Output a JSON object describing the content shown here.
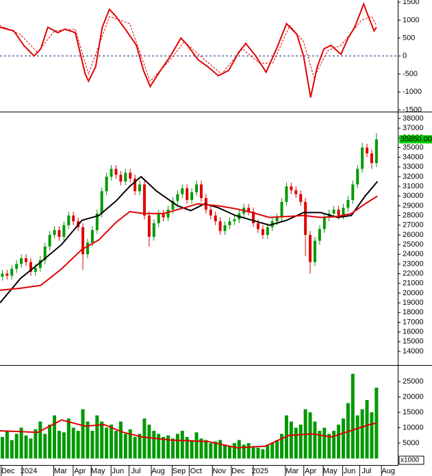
{
  "chart_data": [
    {
      "type": "line",
      "xlim": [
        0,
        84
      ],
      "ylim": [
        -1530,
        1560
      ],
      "yticks": [
        1500,
        1000,
        500,
        0,
        -500,
        -1000,
        -1500
      ],
      "hline": 0,
      "hline_color": "#1a237e",
      "series": [
        {
          "color": "#e00000",
          "dash": false,
          "x": [
            0,
            2.9,
            5,
            7.2,
            8.6,
            10.1,
            12.2,
            13.7,
            15.9,
            18,
            18.7,
            20.2,
            21.6,
            23.1,
            24.5,
            26.7,
            28.8,
            30.3,
            31.7,
            33.9,
            36,
            38.2,
            39.6,
            41.8,
            43.9,
            46.1,
            48.3,
            50.4,
            51.9,
            54,
            56.2,
            58.4,
            60.5,
            62.7,
            64.1,
            65.6,
            67,
            68.4,
            69.9,
            72,
            73.5,
            74.9,
            76.8,
            77.8,
            79,
            79.5
          ],
          "values": [
            800,
            700,
            300,
            0,
            200,
            800,
            650,
            750,
            650,
            -500,
            -700,
            -300,
            800,
            1300,
            1100,
            700,
            300,
            -400,
            -850,
            -400,
            0,
            500,
            300,
            -100,
            -300,
            -550,
            -400,
            100,
            350,
            0,
            -450,
            200,
            900,
            600,
            0,
            -1150,
            -300,
            200,
            300,
            50,
            500,
            800,
            1450,
            1100,
            700,
            800
          ]
        },
        {
          "color": "#e00000",
          "dash": true,
          "x": [
            0,
            4.3,
            7.9,
            11.5,
            15.9,
            18.7,
            23.1,
            27.4,
            31.7,
            36,
            38.9,
            43.2,
            46.8,
            51.2,
            54.8,
            57.6,
            61.2,
            64.1,
            66.3,
            69.2,
            72,
            76.4,
            78.5,
            79.5
          ],
          "values": [
            850,
            600,
            100,
            700,
            750,
            -500,
            1100,
            900,
            -700,
            -100,
            400,
            -100,
            -500,
            200,
            -200,
            -200,
            850,
            400,
            -600,
            150,
            300,
            1000,
            1100,
            850
          ]
        }
      ]
    },
    {
      "type": "candlestick",
      "xlim": [
        0,
        84
      ],
      "ylim": [
        12660,
        38560
      ],
      "yticks": [
        38000,
        37000,
        36000,
        35000,
        34000,
        33000,
        32000,
        31000,
        30000,
        29000,
        28000,
        27000,
        26000,
        25000,
        24000,
        23000,
        22000,
        21000,
        20000,
        19000,
        18000,
        17000,
        16000,
        15000,
        14000
      ],
      "up_color": "#009900",
      "down_color": "#e00000",
      "open": [
        21700,
        22000,
        21800,
        22500,
        23000,
        23600,
        23200,
        22200,
        22600,
        23400,
        24800,
        26000,
        26500,
        25800,
        27000,
        28000,
        27400,
        26800,
        24000,
        25200,
        26500,
        28200,
        30500,
        32000,
        32800,
        32200,
        31500,
        32400,
        31800,
        30500,
        31200,
        28000,
        25800,
        27200,
        28200,
        27800,
        28600,
        29500,
        30200,
        30800,
        29600,
        30400,
        31200,
        29800,
        28600,
        28000,
        27400,
        26400,
        27000,
        27400,
        27600,
        28200,
        28800,
        28400,
        27200,
        26600,
        26000,
        26800,
        27400,
        27800,
        29400,
        31000,
        30600,
        30200,
        29400,
        26000,
        23200,
        25400,
        26600,
        27800,
        28200,
        28600,
        28000,
        28800,
        29600,
        31200,
        32800,
        35000,
        34400,
        33400
      ],
      "high": [
        22400,
        22400,
        22900,
        23400,
        24000,
        24000,
        23600,
        23000,
        23800,
        25200,
        26400,
        26900,
        26900,
        27400,
        28400,
        28400,
        27800,
        27200,
        25600,
        26900,
        28600,
        30900,
        32400,
        33200,
        33200,
        32600,
        32800,
        32800,
        32200,
        31600,
        31600,
        28400,
        27600,
        28600,
        28600,
        29000,
        29900,
        30600,
        31200,
        31200,
        30800,
        31600,
        31600,
        30200,
        29000,
        28400,
        27800,
        27400,
        27800,
        28000,
        28600,
        29200,
        29200,
        28800,
        27600,
        27000,
        27200,
        27800,
        28200,
        29800,
        31400,
        31400,
        31000,
        30600,
        29800,
        26400,
        25800,
        27000,
        28200,
        28600,
        29000,
        29000,
        29200,
        30000,
        31600,
        33200,
        35500,
        35400,
        34800,
        36500
      ],
      "low": [
        21300,
        21400,
        21400,
        22100,
        22600,
        22800,
        21800,
        21800,
        22200,
        23000,
        24400,
        25600,
        25400,
        25400,
        26600,
        27000,
        26400,
        22400,
        23600,
        24800,
        26100,
        27800,
        30100,
        31600,
        31800,
        31100,
        31100,
        31400,
        30100,
        30100,
        27600,
        24800,
        25400,
        26800,
        27400,
        27400,
        28200,
        29100,
        29800,
        29200,
        29200,
        30000,
        29400,
        28200,
        27600,
        27000,
        26000,
        26000,
        26600,
        27000,
        27200,
        27800,
        28000,
        26800,
        26200,
        25600,
        25600,
        26400,
        27000,
        27400,
        29000,
        30200,
        29800,
        29000,
        23800,
        22000,
        22800,
        25000,
        26200,
        27400,
        27800,
        27600,
        27600,
        28400,
        29200,
        30800,
        32400,
        34000,
        32800,
        33000
      ],
      "close": [
        22000,
        21800,
        22500,
        23000,
        23600,
        23200,
        22200,
        22600,
        23400,
        24800,
        26000,
        26500,
        25800,
        27000,
        28000,
        27400,
        26800,
        24000,
        25200,
        26500,
        28200,
        30500,
        32000,
        32800,
        32200,
        31500,
        32400,
        31800,
        30500,
        31200,
        28000,
        25800,
        27200,
        28200,
        27800,
        28600,
        29500,
        30200,
        30800,
        29600,
        30400,
        31200,
        29800,
        28600,
        28000,
        27400,
        26400,
        27000,
        27400,
        27600,
        28200,
        28800,
        28400,
        27200,
        26600,
        26000,
        26800,
        27400,
        27800,
        29400,
        31000,
        30600,
        30200,
        29400,
        26000,
        23200,
        25400,
        26600,
        27800,
        28200,
        28600,
        28000,
        28800,
        29600,
        31200,
        32800,
        35000,
        34400,
        33400,
        35850
      ],
      "last_value_label": "35850.00",
      "last_label_color": "#00cc00",
      "series": [
        {
          "color": "#000000",
          "x": [
            0,
            4.3,
            8.6,
            13,
            17.3,
            20.9,
            24.5,
            27.4,
            29.8,
            33.1,
            37.5,
            40.3,
            43.2,
            46.1,
            49.7,
            53.3,
            56.9,
            60.5,
            64.1,
            67.7,
            71.3,
            74.2,
            77.1,
            79.7
          ],
          "values": [
            19000,
            21500,
            23200,
            25000,
            27500,
            28000,
            29500,
            31000,
            32000,
            30500,
            29000,
            28500,
            29200,
            28800,
            28000,
            27500,
            27000,
            27500,
            28300,
            28300,
            27800,
            28000,
            30000,
            31500
          ]
        },
        {
          "color": "#e00000",
          "x": [
            0,
            4.3,
            8.6,
            13,
            17.3,
            20.9,
            24.5,
            27.4,
            30.3,
            34.6,
            38.9,
            41.8,
            46.1,
            49.7,
            53.3,
            56.9,
            60.5,
            64.1,
            67.7,
            71.3,
            74.2,
            77.1,
            79.7
          ],
          "values": [
            20300,
            20500,
            20800,
            22500,
            24500,
            25500,
            27300,
            28400,
            28200,
            28200,
            28800,
            29200,
            29000,
            28700,
            28300,
            27800,
            27900,
            28000,
            27800,
            27900,
            28200,
            29200,
            30000
          ]
        }
      ]
    },
    {
      "type": "bar",
      "xlim": [
        0,
        84
      ],
      "ylim": [
        -1900,
        29900
      ],
      "yticks": [
        25000,
        20000,
        15000,
        10000,
        5000
      ],
      "color": "#009900",
      "unit_label": "x1000",
      "values": [
        7000,
        9000,
        6000,
        8000,
        10000,
        7500,
        6500,
        9500,
        12000,
        8000,
        11000,
        14000,
        9000,
        8500,
        13000,
        10000,
        9000,
        16000,
        12000,
        9000,
        14000,
        12000,
        10000,
        11000,
        9000,
        12000,
        8000,
        9500,
        7000,
        8000,
        13000,
        11000,
        9000,
        8000,
        7000,
        7500,
        6500,
        8000,
        9000,
        7000,
        6000,
        8500,
        6500,
        6000,
        5000,
        5500,
        6000,
        4500,
        4000,
        5000,
        6000,
        4500,
        5000,
        4000,
        3500,
        3000,
        4500,
        5000,
        6000,
        8000,
        14000,
        12000,
        10000,
        11000,
        16000,
        15000,
        12000,
        9000,
        10000,
        8000,
        9000,
        11000,
        13000,
        18000,
        27500,
        14000,
        16000,
        19000,
        15000,
        23000
      ],
      "series": [
        {
          "color": "#e00000",
          "x": [
            0,
            8,
            13,
            18,
            22,
            26,
            30,
            36,
            44,
            50,
            56,
            61,
            66,
            70,
            74,
            78,
            79.5
          ],
          "values": [
            9000,
            8500,
            12500,
            10500,
            11000,
            8500,
            7000,
            6000,
            5500,
            3500,
            4000,
            7500,
            8000,
            7000,
            9000,
            11000,
            11500
          ]
        }
      ],
      "xticks": [
        {
          "value": 1.7,
          "label": "Dec"
        },
        {
          "value": 6.1,
          "label": "2024"
        },
        {
          "value": 12.8,
          "label": "Mar"
        },
        {
          "value": 16.9,
          "label": "Apr"
        },
        {
          "value": 20.7,
          "label": "May"
        },
        {
          "value": 24.9,
          "label": "Jun"
        },
        {
          "value": 28.7,
          "label": "Jul"
        },
        {
          "value": 33.4,
          "label": "Aug"
        },
        {
          "value": 37.8,
          "label": "Sep"
        },
        {
          "value": 41.4,
          "label": "Oct"
        },
        {
          "value": 46.3,
          "label": "Nov"
        },
        {
          "value": 50.3,
          "label": "Dec"
        },
        {
          "value": 54.9,
          "label": "2025"
        },
        {
          "value": 61.7,
          "label": "Mar"
        },
        {
          "value": 65.6,
          "label": "Apr"
        },
        {
          "value": 69.7,
          "label": "May"
        },
        {
          "value": 73.8,
          "label": "Jun"
        },
        {
          "value": 77.4,
          "label": "Jul"
        },
        {
          "value": 82,
          "label": "Aug"
        }
      ]
    }
  ]
}
